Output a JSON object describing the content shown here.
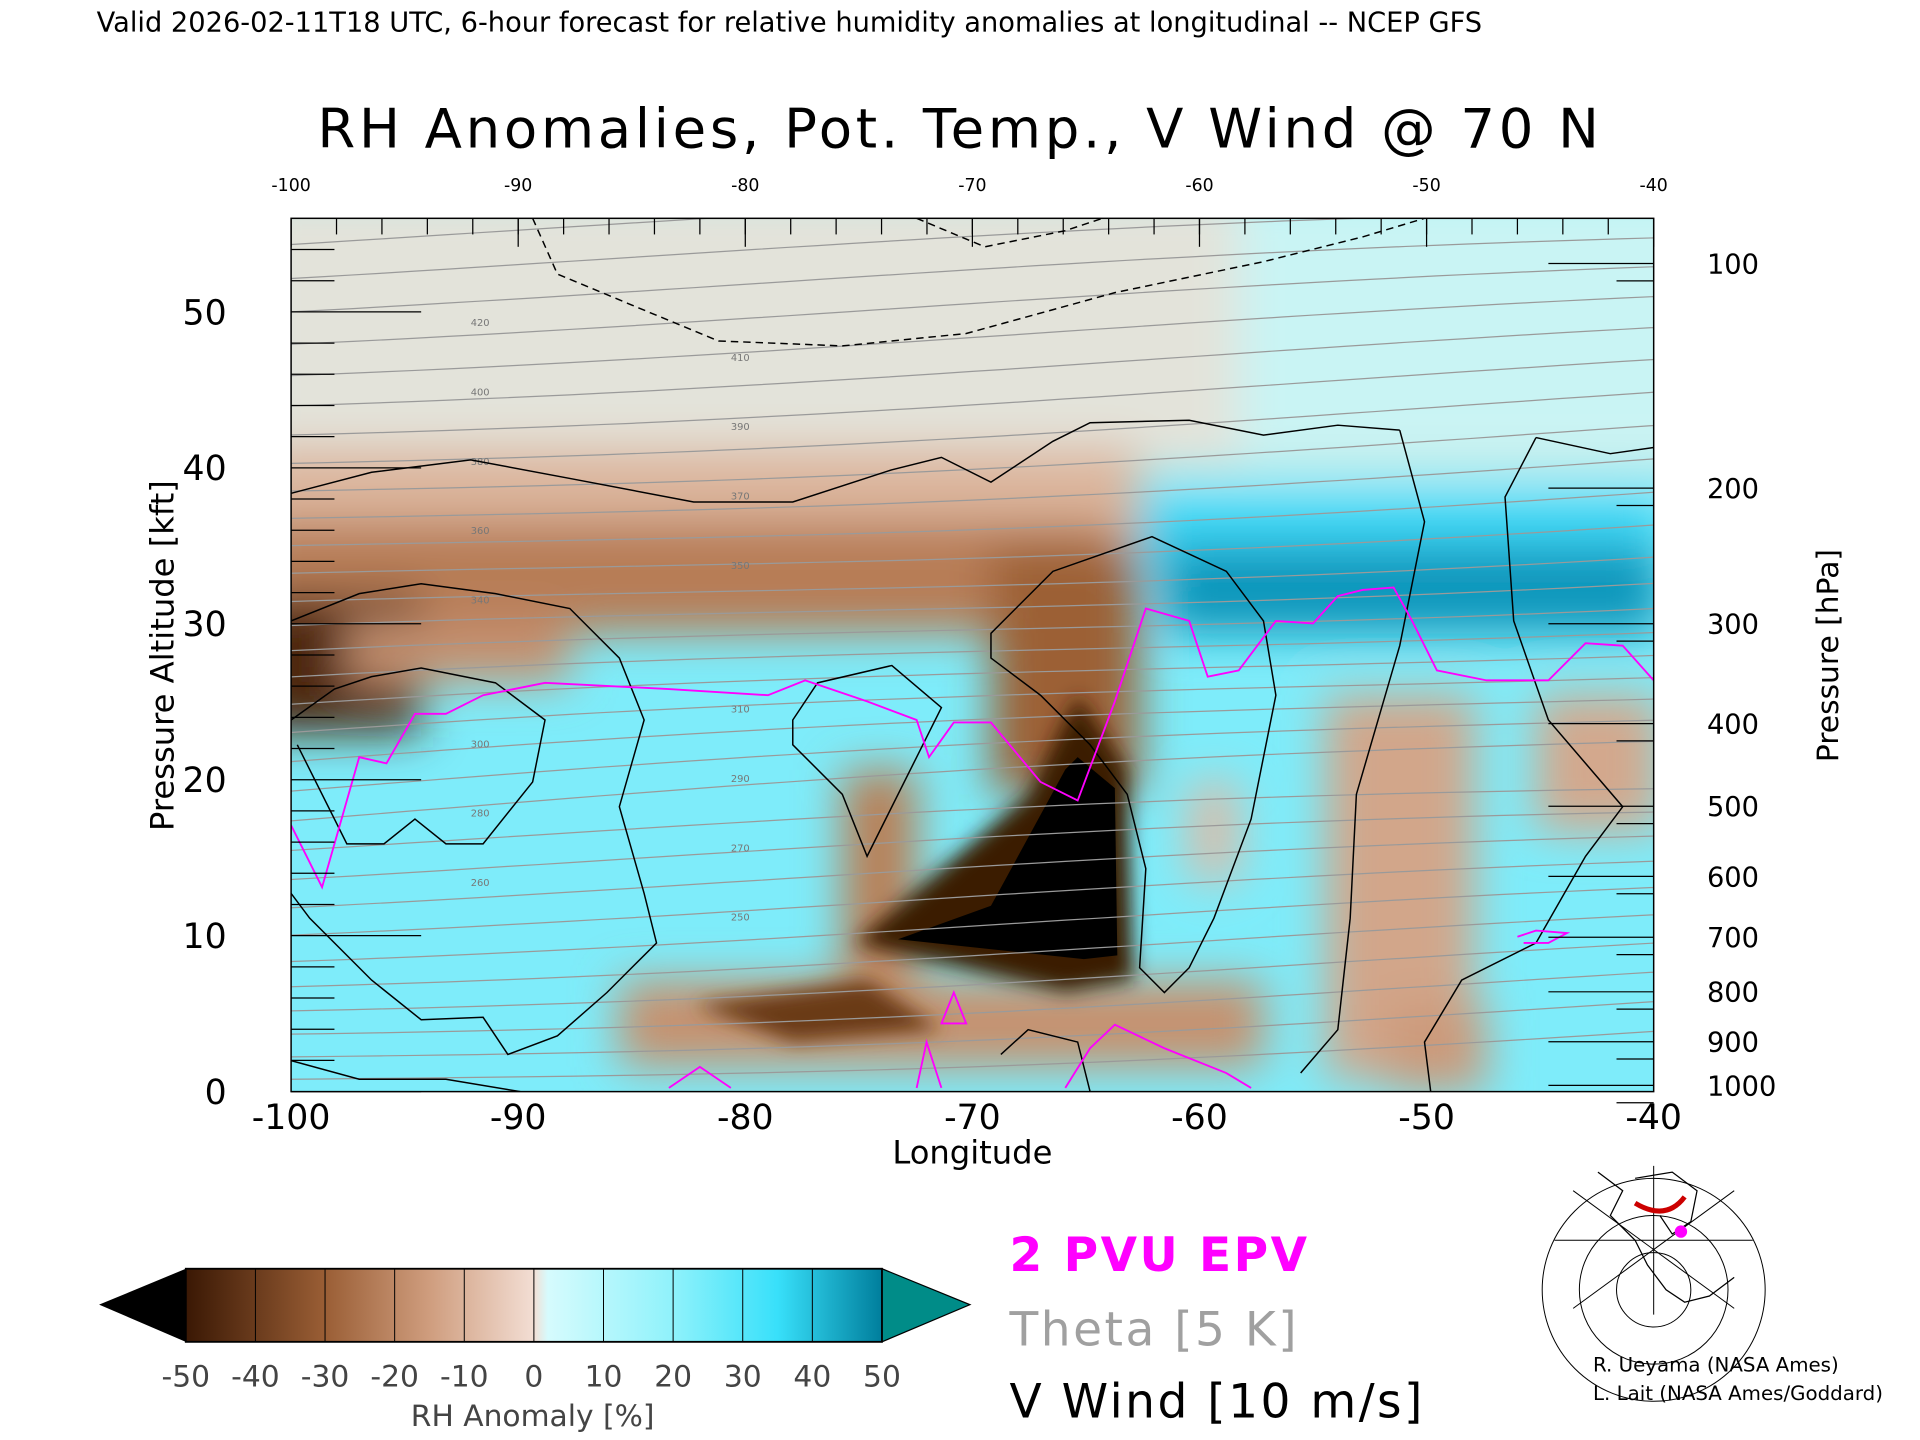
{
  "header": {
    "valid_line": "Valid 2026-02-11T18 UTC, 6-hour forecast for relative humidity anomalies at longitudinal -- NCEP GFS"
  },
  "chart_data": {
    "type": "heatmap",
    "title": "RH Anomalies, Pot. Temp., V Wind @ 70 N",
    "xlabel": "Longitude",
    "ylabel_left": "Pressure Altitude [kft]",
    "ylabel_right": "Pressure [hPa]",
    "xlim": [
      -100,
      -40
    ],
    "ylim": [
      0,
      56
    ],
    "x_ticks": [
      "-100",
      "-90",
      "-80",
      "-70",
      "-60",
      "-50",
      "-40"
    ],
    "top_x_ticks": [
      "-100",
      "-90",
      "-80",
      "-70",
      "-60",
      "-50",
      "-40"
    ],
    "y_ticks_left": [
      "0",
      "10",
      "20",
      "30",
      "40",
      "50"
    ],
    "y_ticks_right": [
      "100",
      "200",
      "300",
      "400",
      "500",
      "600",
      "700",
      "800",
      "900",
      "1000"
    ],
    "y_ticks_right_kft": [
      53.1,
      38.7,
      30.0,
      23.6,
      18.3,
      13.8,
      9.9,
      6.4,
      3.2,
      0.4
    ],
    "colorbar": {
      "label": "RH Anomaly [%]",
      "levels": [
        "-50",
        "-40",
        "-30",
        "-20",
        "-10",
        "0",
        "10",
        "20",
        "30",
        "40",
        "50"
      ],
      "colors": [
        "#000000",
        "#4a2208",
        "#8a5128",
        "#c28f6e",
        "#d9a98c",
        "#f1dcd2",
        "#cffafc",
        "#9ef4fa",
        "#64ecfb",
        "#2dd8f6",
        "#0a8fb0",
        "#008c88"
      ]
    },
    "legend": [
      {
        "label": "2 PVU EPV",
        "color": "#ff00ff"
      },
      {
        "label": "Theta [5 K]",
        "color": "#a0a0a0"
      },
      {
        "label": "V Wind [10 m/s]",
        "color": "#000000"
      }
    ],
    "theta_labels": [
      "420",
      "410",
      "400",
      "390",
      "380",
      "370",
      "360",
      "350",
      "340",
      "310",
      "300",
      "290",
      "280",
      "270",
      "260",
      "250"
    ],
    "wind_labels": [
      "0",
      "-10",
      "10"
    ]
  },
  "credits": {
    "line1": "R. Ueyama (NASA Ames)",
    "line2": "L. Lait (NASA Ames/Goddard)"
  },
  "inset_map": {
    "marker_color": "#ff00ff",
    "track_color": "#cc0000"
  }
}
